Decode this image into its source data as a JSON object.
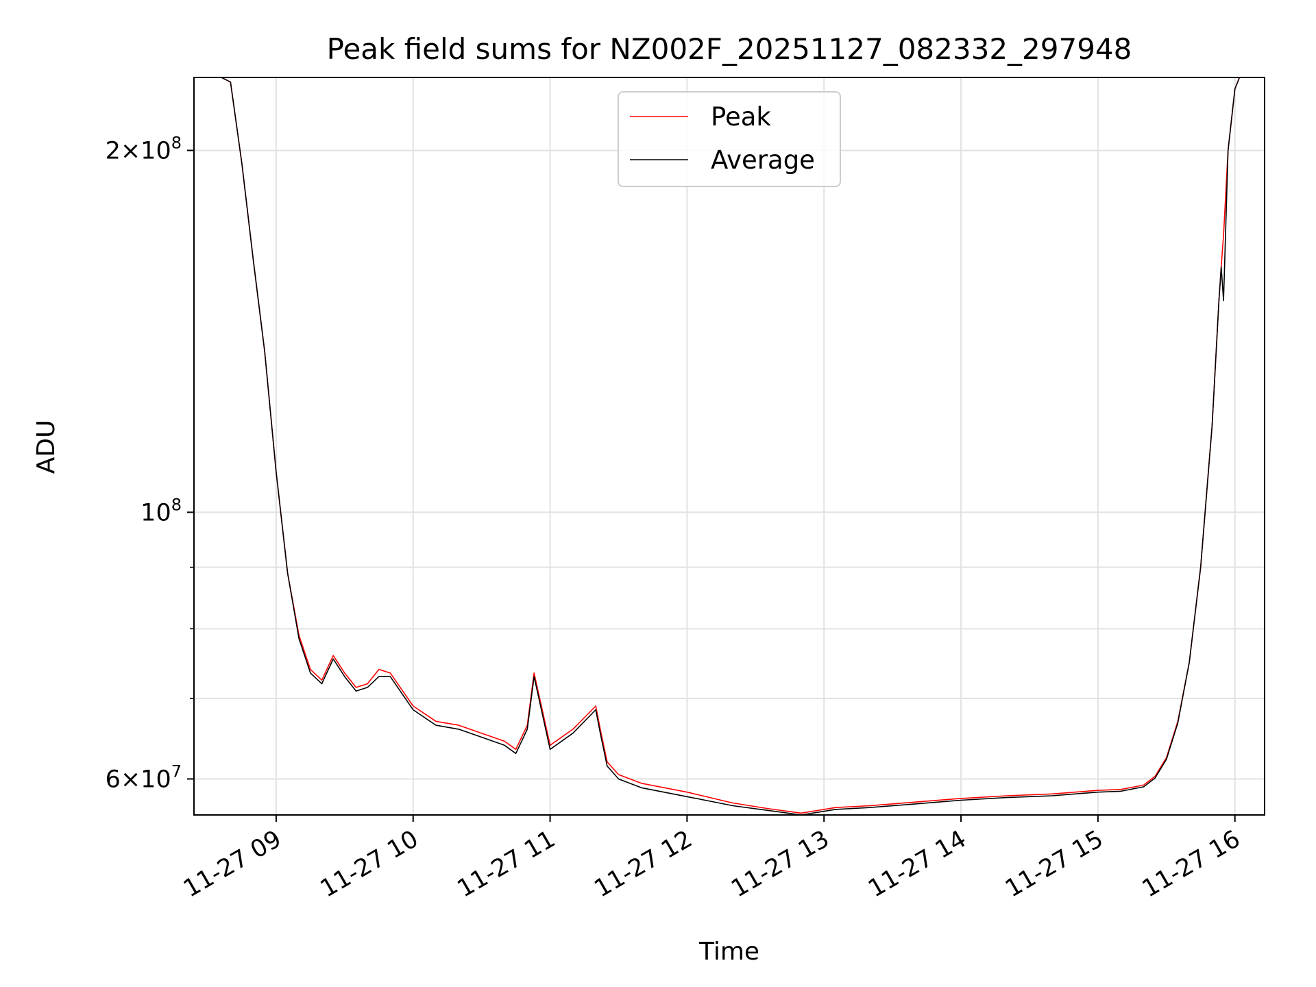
{
  "chart_data": {
    "type": "line",
    "title": "Peak field sums for NZ002F_20251127_082332_297948",
    "xlabel": "Time",
    "ylabel": "ADU",
    "y_scale": "log",
    "grid": true,
    "legend_placement": "upper center",
    "xlim": [
      "2025-11-27 08:24",
      "2025-11-27 16:13"
    ],
    "ylim": [
      56000000,
      230000000
    ],
    "x_ticks": [
      {
        "value": "2025-11-27 09:00",
        "label": "11-27 09"
      },
      {
        "value": "2025-11-27 10:00",
        "label": "11-27 10"
      },
      {
        "value": "2025-11-27 11:00",
        "label": "11-27 11"
      },
      {
        "value": "2025-11-27 12:00",
        "label": "11-27 12"
      },
      {
        "value": "2025-11-27 13:00",
        "label": "11-27 13"
      },
      {
        "value": "2025-11-27 14:00",
        "label": "11-27 14"
      },
      {
        "value": "2025-11-27 15:00",
        "label": "11-27 15"
      },
      {
        "value": "2025-11-27 16:00",
        "label": "11-27 16"
      }
    ],
    "y_major_ticks": [
      {
        "value": 60000000,
        "mantissa": "6",
        "base": "10",
        "exp": "7"
      },
      {
        "value": 100000000,
        "mantissa": "",
        "base": "10",
        "exp": "8"
      },
      {
        "value": 200000000,
        "mantissa": "2",
        "base": "10",
        "exp": "8"
      }
    ],
    "y_minor_ticks": [
      70000000,
      80000000,
      90000000
    ],
    "series": [
      {
        "name": "Peak",
        "color": "#ff0000",
        "x": [
          "2025-11-27 08:36",
          "2025-11-27 08:40",
          "2025-11-27 08:45",
          "2025-11-27 08:50",
          "2025-11-27 08:55",
          "2025-11-27 09:00",
          "2025-11-27 09:05",
          "2025-11-27 09:10",
          "2025-11-27 09:15",
          "2025-11-27 09:20",
          "2025-11-27 09:25",
          "2025-11-27 09:27",
          "2025-11-27 09:30",
          "2025-11-27 09:35",
          "2025-11-27 09:40",
          "2025-11-27 09:45",
          "2025-11-27 09:50",
          "2025-11-27 10:00",
          "2025-11-27 10:10",
          "2025-11-27 10:20",
          "2025-11-27 10:30",
          "2025-11-27 10:40",
          "2025-11-27 10:45",
          "2025-11-27 10:50",
          "2025-11-27 10:53",
          "2025-11-27 11:00",
          "2025-11-27 11:10",
          "2025-11-27 11:20",
          "2025-11-27 11:22",
          "2025-11-27 11:25",
          "2025-11-27 11:30",
          "2025-11-27 11:40",
          "2025-11-27 12:00",
          "2025-11-27 12:20",
          "2025-11-27 12:35",
          "2025-11-27 12:50",
          "2025-11-27 13:05",
          "2025-11-27 13:20",
          "2025-11-27 13:40",
          "2025-11-27 14:00",
          "2025-11-27 14:20",
          "2025-11-27 14:40",
          "2025-11-27 14:50",
          "2025-11-27 15:00",
          "2025-11-27 15:10",
          "2025-11-27 15:20",
          "2025-11-27 15:25",
          "2025-11-27 15:30",
          "2025-11-27 15:35",
          "2025-11-27 15:40",
          "2025-11-27 15:45",
          "2025-11-27 15:50",
          "2025-11-27 15:53",
          "2025-11-27 15:54",
          "2025-11-27 15:55",
          "2025-11-27 15:57",
          "2025-11-27 16:00",
          "2025-11-27 16:02",
          "2025-11-27 16:05",
          "2025-11-27 16:13"
        ],
        "y": [
          230000000,
          228000000,
          195000000,
          162000000,
          136000000,
          108000000,
          89000000,
          79000000,
          74000000,
          72500000,
          76000000,
          75000000,
          73500000,
          71500000,
          72000000,
          74000000,
          73500000,
          69000000,
          67000000,
          66500000,
          65500000,
          64500000,
          63500000,
          66500000,
          73500000,
          64000000,
          66000000,
          69000000,
          66000000,
          62000000,
          60500000,
          59500000,
          58500000,
          57300000,
          56700000,
          56200000,
          56800000,
          57000000,
          57400000,
          57800000,
          58100000,
          58300000,
          58500000,
          58700000,
          58800000,
          59300000,
          60300000,
          62500000,
          67000000,
          75000000,
          90000000,
          118000000,
          150000000,
          160000000,
          170000000,
          200000000,
          225000000,
          230000000,
          230000000,
          230000000
        ]
      },
      {
        "name": "Average",
        "color": "#000000",
        "x": [
          "2025-11-27 08:36",
          "2025-11-27 08:40",
          "2025-11-27 08:45",
          "2025-11-27 08:50",
          "2025-11-27 08:55",
          "2025-11-27 09:00",
          "2025-11-27 09:05",
          "2025-11-27 09:10",
          "2025-11-27 09:15",
          "2025-11-27 09:20",
          "2025-11-27 09:25",
          "2025-11-27 09:27",
          "2025-11-27 09:30",
          "2025-11-27 09:35",
          "2025-11-27 09:40",
          "2025-11-27 09:45",
          "2025-11-27 09:50",
          "2025-11-27 10:00",
          "2025-11-27 10:10",
          "2025-11-27 10:20",
          "2025-11-27 10:30",
          "2025-11-27 10:40",
          "2025-11-27 10:45",
          "2025-11-27 10:50",
          "2025-11-27 10:53",
          "2025-11-27 11:00",
          "2025-11-27 11:10",
          "2025-11-27 11:20",
          "2025-11-27 11:22",
          "2025-11-27 11:25",
          "2025-11-27 11:30",
          "2025-11-27 11:40",
          "2025-11-27 12:00",
          "2025-11-27 12:20",
          "2025-11-27 12:35",
          "2025-11-27 12:50",
          "2025-11-27 13:05",
          "2025-11-27 13:20",
          "2025-11-27 13:40",
          "2025-11-27 14:00",
          "2025-11-27 14:20",
          "2025-11-27 14:40",
          "2025-11-27 14:50",
          "2025-11-27 15:00",
          "2025-11-27 15:10",
          "2025-11-27 15:20",
          "2025-11-27 15:25",
          "2025-11-27 15:30",
          "2025-11-27 15:35",
          "2025-11-27 15:40",
          "2025-11-27 15:45",
          "2025-11-27 15:50",
          "2025-11-27 15:53",
          "2025-11-27 15:54",
          "2025-11-27 15:55",
          "2025-11-27 15:57",
          "2025-11-27 16:00",
          "2025-11-27 16:02",
          "2025-11-27 16:05",
          "2025-11-27 16:13"
        ],
        "y": [
          230000000,
          228000000,
          195000000,
          162000000,
          136000000,
          108000000,
          89000000,
          78500000,
          73500000,
          72000000,
          75500000,
          74500000,
          73000000,
          71000000,
          71500000,
          73000000,
          73000000,
          68500000,
          66500000,
          66000000,
          65000000,
          64000000,
          63000000,
          66000000,
          73000000,
          63500000,
          65500000,
          68500000,
          65500000,
          61500000,
          60000000,
          59000000,
          58000000,
          57000000,
          56500000,
          56000000,
          56600000,
          56800000,
          57200000,
          57600000,
          57900000,
          58100000,
          58300000,
          58500000,
          58600000,
          59100000,
          60100000,
          62300000,
          66800000,
          75000000,
          90000000,
          118000000,
          150000000,
          160000000,
          150000000,
          200000000,
          225000000,
          230000000,
          230000000,
          230000000
        ]
      }
    ]
  }
}
